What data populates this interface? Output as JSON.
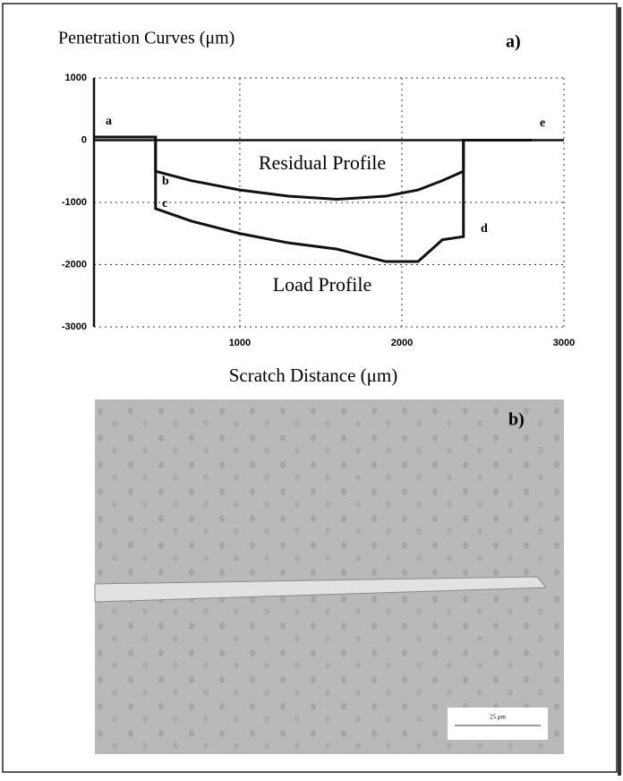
{
  "chart_data": {
    "type": "line",
    "title": "Penetration Curves (μm)",
    "panel_label": "a)",
    "x_label": "Scratch Distance (μm)",
    "x": [
      100,
      480,
      480,
      700,
      1000,
      1300,
      1600,
      1900,
      2100,
      2250,
      2380,
      2380,
      2800
    ],
    "series": [
      {
        "name": "Residual Profile",
        "color": "#111111",
        "values": [
          50,
          50,
          -500,
          -650,
          -800,
          -900,
          -950,
          -900,
          -800,
          -650,
          -500,
          0,
          0
        ]
      },
      {
        "name": "Load Profile",
        "color": "#111111",
        "values": [
          50,
          50,
          -1100,
          -1300,
          -1500,
          -1650,
          -1750,
          -1950,
          -1950,
          -1600,
          -1550,
          0,
          0
        ]
      }
    ],
    "point_labels": [
      "a",
      "b",
      "c",
      "d",
      "e"
    ],
    "xlim": [
      100,
      3000
    ],
    "ylim": [
      -3000,
      1000
    ],
    "xticks": [
      1000,
      2000,
      3000
    ],
    "yticks": [
      1000,
      0,
      -1000,
      -2000,
      -3000
    ],
    "grid": true
  },
  "panel_b": {
    "label": "b)",
    "scale_bar": "25 μm"
  }
}
